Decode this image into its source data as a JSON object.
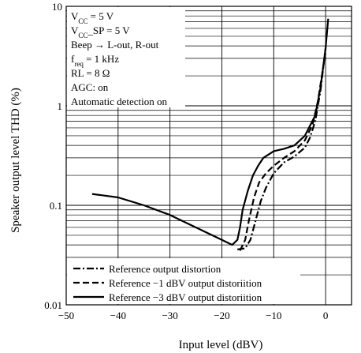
{
  "chart_data": {
    "type": "line",
    "xlabel": "Input level  (dBV)",
    "ylabel": "Speaker output level  THD  (%)",
    "xlim": [
      -50,
      5
    ],
    "ylim": [
      0.01,
      10
    ],
    "y_scale": "log",
    "x_ticks": [
      -50,
      -40,
      -30,
      -20,
      -10,
      0
    ],
    "x_tick_labels": [
      "−50",
      "−40",
      "−30",
      "−20",
      "−10",
      "0"
    ],
    "y_ticks": [
      0.01,
      0.1,
      1,
      10
    ],
    "y_tick_labels": [
      "0.01",
      "0.1",
      "1",
      "10"
    ],
    "grid": true,
    "conditions": [
      {
        "main": "V",
        "sub": "CC",
        "rest": " = 5 V"
      },
      {
        "main": "V",
        "sub": "CC",
        "rest": "_SP = 5 V"
      },
      {
        "main": "Beep → L-out, R-out",
        "sub": "",
        "rest": ""
      },
      {
        "main": "f",
        "sub": "req",
        "rest": " = 1 kHz"
      },
      {
        "main": "RL = 8 Ω",
        "sub": "",
        "rest": ""
      },
      {
        "main": "AGC: on",
        "sub": "",
        "rest": ""
      },
      {
        "main": "Automatic detection on",
        "sub": "",
        "rest": ""
      }
    ],
    "series": [
      {
        "name": "Reference output distortion",
        "style": "dashdot",
        "x": [
          -17,
          -15.5,
          -14.5,
          -13.5,
          -12.5,
          -11.5,
          -10,
          -8,
          -6,
          -4,
          -3,
          -2,
          -1,
          0
        ],
        "y": [
          0.036,
          0.037,
          0.045,
          0.07,
          0.11,
          0.15,
          0.21,
          0.27,
          0.31,
          0.38,
          0.48,
          0.7,
          1.4,
          3.8
        ]
      },
      {
        "name": "Reference −1 dBV output distoriition",
        "style": "dashed",
        "x": [
          -16.5,
          -15.5,
          -14.8,
          -13.8,
          -12.8,
          -11.5,
          -10,
          -8,
          -6,
          -4,
          -2.5,
          -1.5,
          0
        ],
        "y": [
          0.035,
          0.045,
          0.07,
          0.12,
          0.17,
          0.21,
          0.25,
          0.3,
          0.35,
          0.45,
          0.65,
          1.1,
          3.5
        ]
      },
      {
        "name": "Reference −3 dBV output distoriition",
        "style": "solid",
        "x": [
          -45,
          -40,
          -35,
          -30,
          -25,
          -20,
          -18,
          -17,
          -16.5,
          -16,
          -15,
          -14,
          -13,
          -12,
          -10,
          -8,
          -6,
          -4,
          -2,
          -1,
          0,
          0.5
        ],
        "y": [
          0.13,
          0.12,
          0.1,
          0.08,
          0.06,
          0.045,
          0.04,
          0.045,
          0.06,
          0.09,
          0.14,
          0.2,
          0.25,
          0.3,
          0.35,
          0.37,
          0.4,
          0.5,
          0.8,
          1.5,
          3.8,
          7.5
        ]
      }
    ]
  }
}
